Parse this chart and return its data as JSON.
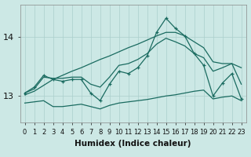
{
  "xlabel": "Humidex (Indice chaleur)",
  "background_color": "#cce8e5",
  "grid_color": "#aacfcc",
  "line_color": "#1a6b60",
  "x_ticks": [
    0,
    1,
    2,
    3,
    4,
    5,
    6,
    7,
    8,
    9,
    10,
    11,
    12,
    13,
    14,
    15,
    16,
    17,
    18,
    19,
    20,
    21,
    22,
    23
  ],
  "y_ticks": [
    13,
    14
  ],
  "ylim": [
    12.55,
    14.55
  ],
  "xlim": [
    -0.5,
    23.5
  ],
  "main_line": [
    13.05,
    13.15,
    13.35,
    13.28,
    13.25,
    13.28,
    13.28,
    13.05,
    12.92,
    13.2,
    13.42,
    13.38,
    13.48,
    13.68,
    14.08,
    14.32,
    14.15,
    14.02,
    13.72,
    13.52,
    13.0,
    13.22,
    13.38,
    12.95
  ],
  "smooth_line": [
    13.05,
    13.12,
    13.32,
    13.3,
    13.3,
    13.32,
    13.32,
    13.2,
    13.15,
    13.32,
    13.52,
    13.55,
    13.62,
    13.72,
    13.88,
    13.98,
    13.92,
    13.85,
    13.72,
    13.65,
    13.42,
    13.48,
    13.55,
    13.2
  ],
  "upper_band": [
    13.02,
    13.08,
    13.18,
    13.28,
    13.35,
    13.42,
    13.48,
    13.55,
    13.62,
    13.68,
    13.75,
    13.82,
    13.88,
    13.95,
    14.02,
    14.08,
    14.08,
    14.02,
    13.92,
    13.82,
    13.58,
    13.55,
    13.55,
    13.48
  ],
  "lower_band": [
    12.88,
    12.9,
    12.92,
    12.82,
    12.82,
    12.84,
    12.86,
    12.82,
    12.78,
    12.84,
    12.88,
    12.9,
    12.92,
    12.94,
    12.97,
    13.0,
    13.02,
    13.05,
    13.08,
    13.1,
    12.95,
    12.98,
    13.0,
    12.92
  ],
  "tick_fontsize": 6,
  "label_fontsize": 7.5
}
